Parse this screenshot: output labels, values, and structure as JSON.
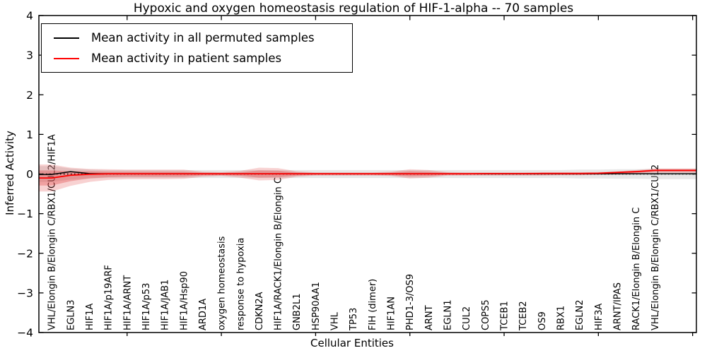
{
  "figure": {
    "title": "Hypoxic and oxygen homeostasis regulation of HIF-1-alpha -- 70 samples",
    "xlabel": "Cellular Entities",
    "ylabel": "Inferred Activity",
    "sample_count_in_title": 70,
    "background_color": "#ffffff",
    "frame_color": "#000000"
  },
  "legend": {
    "position": "upper left",
    "items": [
      {
        "label": "Mean activity in all permuted samples",
        "color": "#000000"
      },
      {
        "label": "Mean activity in patient samples",
        "color": "#ff0000"
      }
    ]
  },
  "chart_data": {
    "type": "line",
    "title": "Hypoxic and oxygen homeostasis regulation of HIF-1-alpha -- 70 samples",
    "xlabel": "Cellular Entities",
    "ylabel": "Inferred Activity",
    "ylim": [
      -4,
      4
    ],
    "grid": false,
    "legend_position": "upper left",
    "yticks": [
      4,
      3,
      2,
      1,
      0,
      -1,
      -2,
      -3,
      -4
    ],
    "ytick_labels": [
      "4",
      "3",
      "2",
      "1",
      "0",
      "−1",
      "−2",
      "−3",
      "−4"
    ],
    "xtick_units": [
      5,
      10,
      15,
      20,
      25,
      30,
      35
    ],
    "categories": [
      "VHL/Elongin B/Elongin C/RBX1/CUL2/HIF1A",
      "EGLN3",
      "HIF1A",
      "HIF1A/p19ARF",
      "HIF1A/ARNT",
      "HIF1A/p53",
      "HIF1A/JAB1",
      "HIF1A/Hsp90",
      "ARD1A",
      "oxygen homeostasis",
      "response to hypoxia",
      "CDKN2A",
      "HIF1A/RACK1/Elongin B/Elongin C",
      "GNB2L1",
      "HSP90AA1",
      "VHL",
      "TP53",
      "FIH (dimer)",
      "HIF1AN",
      "PHD1-3/OS9",
      "ARNT",
      "EGLN1",
      "CUL2",
      "COPS5",
      "TCEB1",
      "TCEB2",
      "OS9",
      "RBX1",
      "EGLN2",
      "HIF3A",
      "ARNT/IPAS",
      "RACK1/Elongin B/Elongin C",
      "VHL/Elongin B/Elongin C/RBX1/CUL2"
    ],
    "series": [
      {
        "name": "Mean activity in all permuted samples",
        "color": "#000000",
        "width": 1.5,
        "values": [
          -0.01,
          0.06,
          0.01,
          0.008,
          0.008,
          0.008,
          0.008,
          0.008,
          0.008,
          0.008,
          0.008,
          0.008,
          0.008,
          0.008,
          0.008,
          0.008,
          0.008,
          0.008,
          0.008,
          0.008,
          0.008,
          0.008,
          0.008,
          0.008,
          0.008,
          0.008,
          0.008,
          0.008,
          0.008,
          0.008,
          0.008,
          0.008,
          0.008
        ]
      },
      {
        "name": "Mean activity in patient samples",
        "color": "#ff0000",
        "width": 1.8,
        "values": [
          -0.1,
          -0.03,
          -0.005,
          0.005,
          0.005,
          0.005,
          0.005,
          0.005,
          0.005,
          0.005,
          0.005,
          0.005,
          0.005,
          0.005,
          0.005,
          0.005,
          0.005,
          0.005,
          0.005,
          0.005,
          0.005,
          0.005,
          0.005,
          0.01,
          0.01,
          0.01,
          0.015,
          0.015,
          0.015,
          0.02,
          0.04,
          0.06,
          0.09
        ]
      }
    ],
    "bands": [
      {
        "name": "permuted-samples-std-band",
        "color": "#bbbbbb",
        "opacity": 0.35,
        "top": [
          0.2,
          0.14,
          0.11,
          0.1,
          0.1,
          0.1,
          0.1,
          0.1,
          0.1,
          0.1,
          0.1,
          0.1,
          0.1,
          0.1,
          0.1,
          0.1,
          0.1,
          0.1,
          0.1,
          0.1,
          0.1,
          0.1,
          0.1,
          0.1,
          0.1,
          0.1,
          0.1,
          0.1,
          0.11,
          0.11,
          0.12,
          0.12,
          0.13
        ],
        "bottom": [
          -0.2,
          -0.14,
          -0.11,
          -0.1,
          -0.1,
          -0.1,
          -0.1,
          -0.1,
          -0.1,
          -0.1,
          -0.1,
          -0.1,
          -0.1,
          -0.1,
          -0.1,
          -0.1,
          -0.1,
          -0.1,
          -0.1,
          -0.1,
          -0.1,
          -0.1,
          -0.1,
          -0.1,
          -0.1,
          -0.1,
          -0.1,
          -0.1,
          -0.11,
          -0.11,
          -0.12,
          -0.12,
          -0.13
        ]
      },
      {
        "name": "patient-samples-std-band-outer",
        "color": "#dd3333",
        "opacity": 0.22,
        "top": [
          0.24,
          0.16,
          0.13,
          0.12,
          0.11,
          0.11,
          0.11,
          0.11,
          0.06,
          0.05,
          0.08,
          0.16,
          0.15,
          0.07,
          0.04,
          0.04,
          0.04,
          0.04,
          0.06,
          0.12,
          0.1,
          0.05,
          0.04,
          0.04,
          0.04,
          0.04,
          0.04,
          0.04,
          0.04,
          0.05,
          0.07,
          0.1,
          0.14
        ],
        "bottom": [
          -0.44,
          -0.3,
          -0.2,
          -0.15,
          -0.13,
          -0.13,
          -0.13,
          -0.12,
          -0.07,
          -0.05,
          -0.09,
          -0.16,
          -0.15,
          -0.07,
          -0.04,
          -0.04,
          -0.04,
          -0.04,
          -0.05,
          -0.11,
          -0.09,
          -0.04,
          -0.04,
          -0.04,
          -0.04,
          -0.04,
          -0.04,
          -0.03,
          -0.03,
          -0.02,
          -0.01,
          0.0,
          0.03
        ]
      },
      {
        "name": "patient-samples-std-band-inner",
        "color": "#dd3333",
        "opacity": 0.3,
        "top": [
          0.09,
          0.07,
          0.07,
          0.06,
          0.06,
          0.06,
          0.06,
          0.06,
          0.035,
          0.03,
          0.045,
          0.09,
          0.085,
          0.04,
          0.025,
          0.025,
          0.025,
          0.025,
          0.035,
          0.07,
          0.055,
          0.03,
          0.025,
          0.025,
          0.025,
          0.025,
          0.025,
          0.025,
          0.025,
          0.03,
          0.055,
          0.08,
          0.12
        ],
        "bottom": [
          -0.29,
          -0.18,
          -0.11,
          -0.08,
          -0.07,
          -0.07,
          -0.07,
          -0.07,
          -0.035,
          -0.03,
          -0.045,
          -0.09,
          -0.085,
          -0.04,
          -0.02,
          -0.02,
          -0.02,
          -0.02,
          -0.03,
          -0.06,
          -0.05,
          -0.02,
          -0.02,
          -0.02,
          -0.02,
          -0.02,
          -0.02,
          -0.02,
          -0.02,
          -0.01,
          0.0,
          0.03,
          0.06
        ]
      }
    ],
    "zero_line": {
      "y": 0,
      "style": "dotted",
      "color": "#000000"
    }
  }
}
